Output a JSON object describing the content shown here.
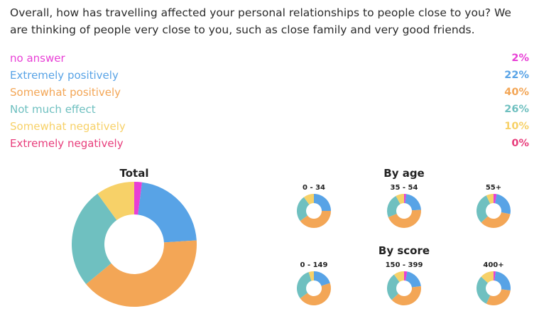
{
  "question": "Overall, how has travelling affected your personal relationships to people close to you? We are thinking of people very close to you, such as close family and very good friends.",
  "answers": [
    {
      "label": "no answer",
      "pct": "2%",
      "color": "#e83fd6"
    },
    {
      "label": "Extremely positively",
      "pct": "22%",
      "color": "#58a3e6"
    },
    {
      "label": "Somewhat positively",
      "pct": "40%",
      "color": "#f3a656"
    },
    {
      "label": "Not much effect",
      "pct": "26%",
      "color": "#6fc0c0"
    },
    {
      "label": "Somewhat negatively",
      "pct": "10%",
      "color": "#f7d168"
    },
    {
      "label": "Extremely negatively",
      "pct": "0%",
      "color": "#e83e7c"
    }
  ],
  "chart_data": {
    "type": "pie",
    "categories": [
      "no answer",
      "Extremely positively",
      "Somewhat positively",
      "Not much effect",
      "Somewhat negatively",
      "Extremely negatively"
    ],
    "colors": [
      "#e83fd6",
      "#58a3e6",
      "#f3a656",
      "#6fc0c0",
      "#f7d168",
      "#e83e7c"
    ],
    "total": {
      "title": "Total",
      "values": [
        2,
        22,
        40,
        26,
        10,
        0
      ]
    },
    "by_age": {
      "title": "By age",
      "groups": [
        {
          "label": "0 - 34",
          "values": [
            0,
            25,
            40,
            25,
            10,
            0
          ]
        },
        {
          "label": "35 - 54",
          "values": [
            2,
            22,
            45,
            23,
            8,
            0
          ]
        },
        {
          "label": "55+",
          "values": [
            3,
            25,
            35,
            30,
            7,
            0
          ]
        }
      ]
    },
    "by_score": {
      "title": "By score",
      "groups": [
        {
          "label": "0 - 149",
          "values": [
            0,
            20,
            45,
            30,
            5,
            0
          ]
        },
        {
          "label": "150 - 399",
          "values": [
            3,
            20,
            40,
            27,
            10,
            0
          ]
        },
        {
          "label": "400+",
          "values": [
            2,
            25,
            30,
            30,
            13,
            0
          ]
        }
      ]
    }
  }
}
